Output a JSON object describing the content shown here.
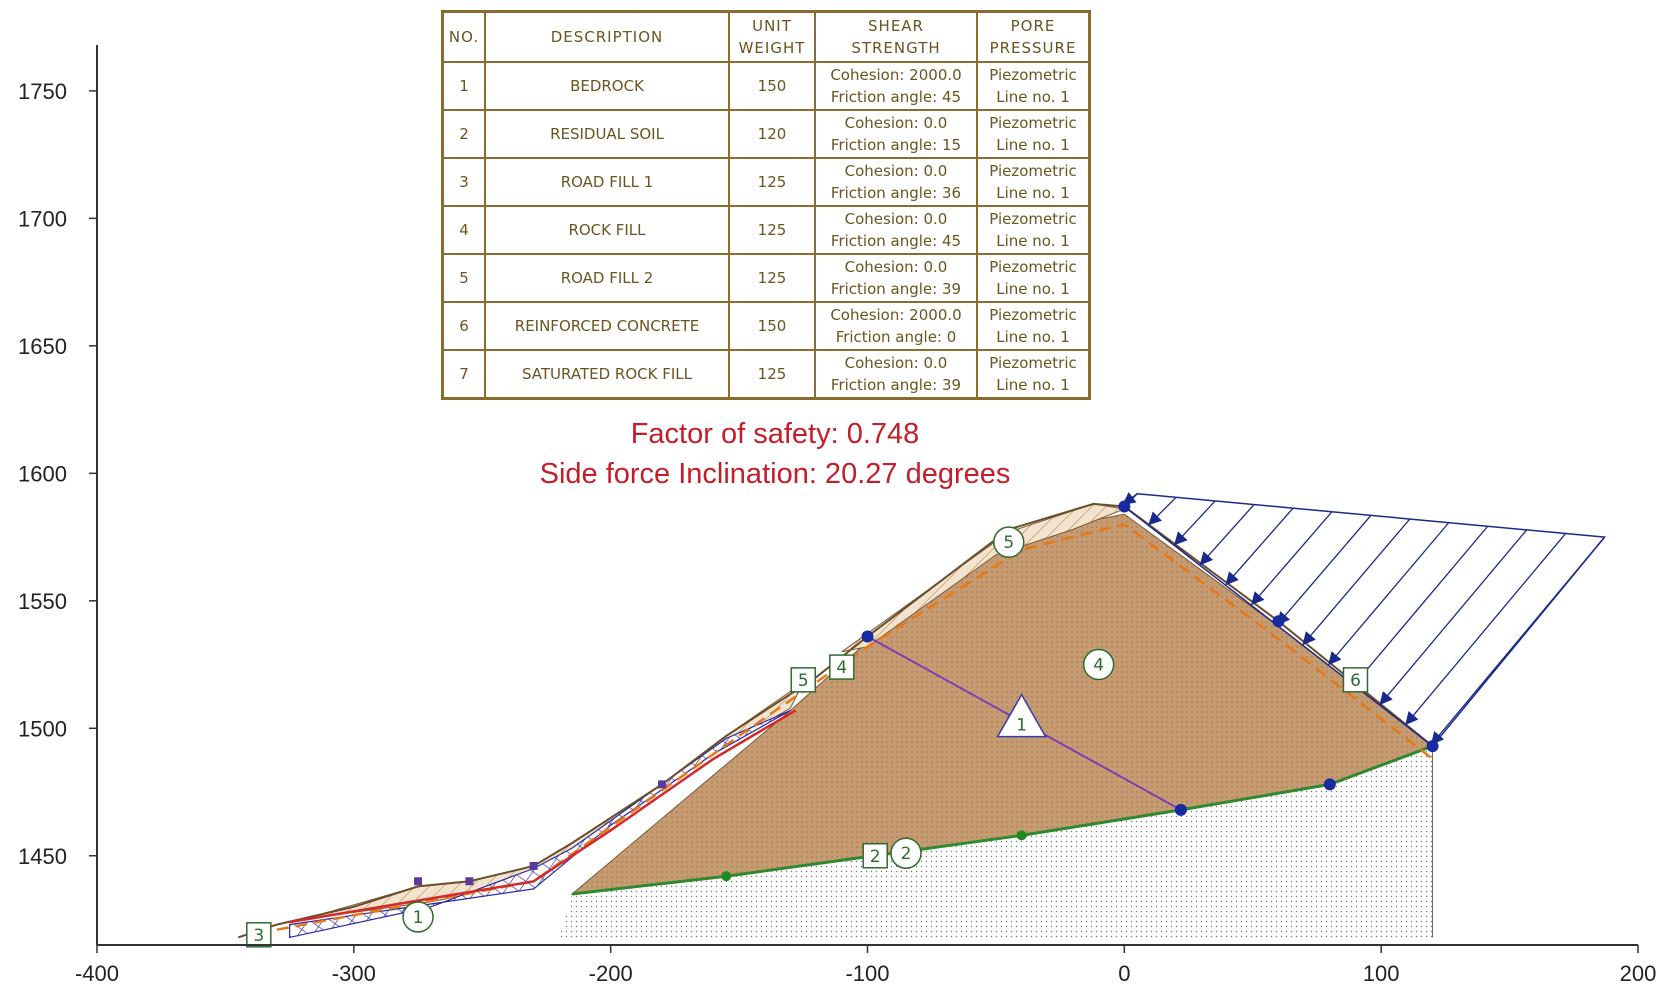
{
  "axes": {
    "x_ticks": [
      "-400",
      "-300",
      "-200",
      "-100",
      "0",
      "100",
      "200"
    ],
    "y_ticks": [
      "1750",
      "1700",
      "1650",
      "1600",
      "1550",
      "1500",
      "1450"
    ],
    "x_range": [
      -400,
      200
    ],
    "y_range": [
      1415,
      1768
    ]
  },
  "legend_table": {
    "headers": {
      "no": "NO.",
      "description": "DESCRIPTION",
      "unit_weight": [
        "UNIT",
        "WEIGHT"
      ],
      "shear_strength": [
        "SHEAR",
        "STRENGTH"
      ],
      "pore_pressure": [
        "PORE",
        "PRESSURE"
      ]
    },
    "rows": [
      {
        "no": "1",
        "description": "BEDROCK",
        "unit_weight": "150",
        "shear": [
          "Cohesion: 2000.0",
          "Friction angle: 45"
        ],
        "pore": [
          "Piezometric",
          "Line no. 1"
        ]
      },
      {
        "no": "2",
        "description": "RESIDUAL SOIL",
        "unit_weight": "120",
        "shear": [
          "Cohesion: 0.0",
          "Friction angle: 15"
        ],
        "pore": [
          "Piezometric",
          "Line no. 1"
        ]
      },
      {
        "no": "3",
        "description": "ROAD FILL 1",
        "unit_weight": "125",
        "shear": [
          "Cohesion: 0.0",
          "Friction angle: 36"
        ],
        "pore": [
          "Piezometric",
          "Line no. 1"
        ]
      },
      {
        "no": "4",
        "description": "ROCK FILL",
        "unit_weight": "125",
        "shear": [
          "Cohesion: 0.0",
          "Friction angle: 45"
        ],
        "pore": [
          "Piezometric",
          "Line no. 1"
        ]
      },
      {
        "no": "5",
        "description": "ROAD FILL 2",
        "unit_weight": "125",
        "shear": [
          "Cohesion: 0.0",
          "Friction angle: 39"
        ],
        "pore": [
          "Piezometric",
          "Line no. 1"
        ]
      },
      {
        "no": "6",
        "description": "REINFORCED CONCRETE",
        "unit_weight": "150",
        "shear": [
          "Cohesion: 2000.0",
          "Friction angle: 0"
        ],
        "pore": [
          "Piezometric",
          "Line no. 1"
        ]
      },
      {
        "no": "7",
        "description": "SATURATED ROCK FILL",
        "unit_weight": "125",
        "shear": [
          "Cohesion: 0.0",
          "Friction angle: 39"
        ],
        "pore": [
          "Piezometric",
          "Line no. 1"
        ]
      }
    ]
  },
  "results": {
    "factor_of_safety": "Factor of safety: 0.748",
    "side_force": "Side force Inclination: 20.27 degrees"
  },
  "geometry": {
    "slope_surface": [
      [
        -345,
        1418
      ],
      [
        -330,
        1423
      ],
      [
        -300,
        1430
      ],
      [
        -275,
        1438
      ],
      [
        -255,
        1440
      ],
      [
        -230,
        1446
      ],
      [
        -215,
        1455
      ],
      [
        -180,
        1478
      ],
      [
        -155,
        1497
      ],
      [
        -120,
        1520
      ],
      [
        -100,
        1536
      ],
      [
        -45,
        1578
      ],
      [
        -12,
        1588
      ],
      [
        0,
        1587
      ],
      [
        60,
        1542
      ],
      [
        120,
        1493
      ]
    ],
    "rock_fill_zone": [
      [
        -215,
        1435
      ],
      [
        -130,
        1507
      ],
      [
        -100,
        1534
      ],
      [
        -40,
        1576
      ],
      [
        0,
        1584
      ],
      [
        60,
        1540
      ],
      [
        120,
        1493
      ],
      [
        80,
        1478
      ],
      [
        22,
        1468
      ],
      [
        -40,
        1458
      ],
      [
        -155,
        1442
      ]
    ],
    "road_fill2_zone": [
      [
        -110,
        1530
      ],
      [
        -45,
        1577
      ],
      [
        -12,
        1588
      ],
      [
        0,
        1586
      ],
      [
        -20,
        1578
      ],
      [
        -50,
        1568
      ],
      [
        -100,
        1532
      ]
    ],
    "road_fill1_zone": [
      [
        -320,
        1425
      ],
      [
        -275,
        1438
      ],
      [
        -255,
        1440
      ],
      [
        -230,
        1446
      ],
      [
        -215,
        1455
      ],
      [
        -180,
        1478
      ],
      [
        -155,
        1497
      ],
      [
        -125,
        1518
      ],
      [
        -130,
        1508
      ],
      [
        -160,
        1490
      ],
      [
        -200,
        1462
      ],
      [
        -230,
        1440
      ],
      [
        -270,
        1432
      ]
    ],
    "saturated_fill_zone": [
      [
        -325,
        1423
      ],
      [
        -230,
        1437
      ],
      [
        -200,
        1462
      ],
      [
        -160,
        1490
      ],
      [
        -130,
        1507
      ],
      [
        -155,
        1496
      ],
      [
        -215,
        1453
      ],
      [
        -230,
        1445
      ],
      [
        -270,
        1430
      ],
      [
        -325,
        1418
      ]
    ],
    "bedrock_top": [
      [
        -345,
        1418
      ],
      [
        -220,
        1418
      ],
      [
        -215,
        1435
      ],
      [
        -155,
        1442
      ],
      [
        -40,
        1458
      ],
      [
        22,
        1468
      ],
      [
        80,
        1478
      ],
      [
        120,
        1493
      ],
      [
        120,
        1418
      ]
    ],
    "residual_line": [
      [
        -215,
        1435
      ],
      [
        -155,
        1442
      ],
      [
        -40,
        1458
      ],
      [
        22,
        1468
      ],
      [
        80,
        1478
      ],
      [
        120,
        1493
      ]
    ],
    "slip_surface_orange": [
      [
        -330,
        1421
      ],
      [
        -230,
        1440
      ],
      [
        -150,
        1497
      ],
      [
        -100,
        1532
      ],
      [
        -40,
        1570
      ],
      [
        0,
        1580
      ],
      [
        60,
        1535
      ],
      [
        120,
        1488
      ]
    ],
    "piezometric_line": [
      [
        -100,
        1536
      ],
      [
        22,
        1468
      ]
    ],
    "load_top": [
      [
        5,
        1592
      ],
      [
        187,
        1575
      ]
    ],
    "load_bottom": [
      [
        0,
        1587
      ],
      [
        120,
        1493
      ]
    ],
    "blue_nodes": [
      [
        0,
        1587
      ],
      [
        60,
        1542
      ],
      [
        120,
        1493
      ],
      [
        22,
        1468
      ],
      [
        80,
        1478
      ],
      [
        -100,
        1536
      ]
    ],
    "green_nodes": [
      [
        -155,
        1442
      ],
      [
        -40,
        1458
      ]
    ],
    "labels_circle": [
      {
        "text": "5",
        "x": -45,
        "y": 1573
      },
      {
        "text": "4",
        "x": -10,
        "y": 1525
      },
      {
        "text": "2",
        "x": -85,
        "y": 1451
      },
      {
        "text": "1",
        "x": -275,
        "y": 1426
      }
    ],
    "labels_square": [
      {
        "text": "5",
        "x": -125,
        "y": 1519
      },
      {
        "text": "4",
        "x": -110,
        "y": 1524
      },
      {
        "text": "6",
        "x": 90,
        "y": 1519
      },
      {
        "text": "2",
        "x": -97,
        "y": 1450
      },
      {
        "text": "3",
        "x": -337,
        "y": 1419
      }
    ],
    "piezo_label": {
      "text": "1",
      "x": -40,
      "y": 1503
    }
  }
}
